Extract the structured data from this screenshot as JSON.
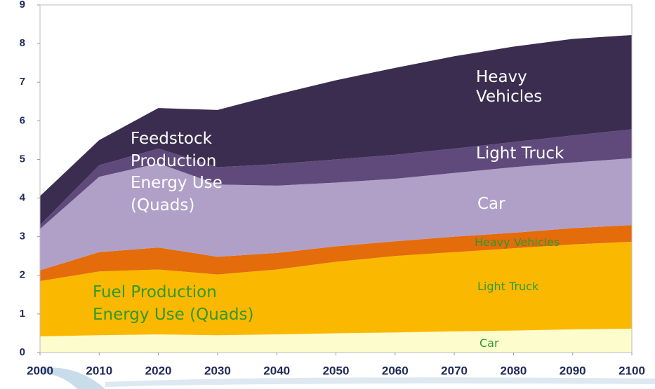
{
  "chart_data": {
    "type": "stacked_area",
    "annotations": [
      "Feedstock Production Energy Use (Quads)",
      "Fuel Production Energy Use (Quads)"
    ],
    "x": [
      2000,
      2010,
      2020,
      2030,
      2040,
      2050,
      2060,
      2070,
      2080,
      2090,
      2100
    ],
    "xlim": [
      2000,
      2100
    ],
    "xticks": [
      2000,
      2010,
      2020,
      2030,
      2040,
      2050,
      2060,
      2070,
      2080,
      2090,
      2100
    ],
    "ylim": [
      0,
      9
    ],
    "yticks": [
      0,
      1,
      2,
      3,
      4,
      5,
      6,
      7,
      8,
      9
    ],
    "series": [
      {
        "name": "Car",
        "color": "#fdfccc",
        "values": [
          0.42,
          0.45,
          0.47,
          0.45,
          0.47,
          0.5,
          0.52,
          0.55,
          0.57,
          0.6,
          0.62
        ]
      },
      {
        "name": "Light Truck",
        "color": "#fbb800",
        "values": [
          1.43,
          1.65,
          1.68,
          1.57,
          1.68,
          1.85,
          1.98,
          2.05,
          2.13,
          2.2,
          2.25
        ]
      },
      {
        "name": "Heavy Vehicles",
        "color": "#e46c0a",
        "values": [
          0.28,
          0.5,
          0.57,
          0.46,
          0.43,
          0.4,
          0.38,
          0.4,
          0.4,
          0.42,
          0.43
        ]
      },
      {
        "name": "Car",
        "color": "#b0a0c8",
        "values": [
          1.07,
          1.95,
          2.18,
          1.87,
          1.74,
          1.65,
          1.62,
          1.65,
          1.7,
          1.7,
          1.73
        ]
      },
      {
        "name": "Light Truck",
        "color": "#604a7b",
        "values": [
          0.1,
          0.3,
          0.38,
          0.45,
          0.56,
          0.6,
          0.62,
          0.63,
          0.65,
          0.7,
          0.75
        ]
      },
      {
        "name": "Heavy Vehicles",
        "color": "#3b2d4f",
        "values": [
          0.75,
          0.65,
          1.05,
          1.48,
          1.8,
          2.05,
          2.25,
          2.39,
          2.47,
          2.5,
          2.44
        ]
      }
    ]
  }
}
